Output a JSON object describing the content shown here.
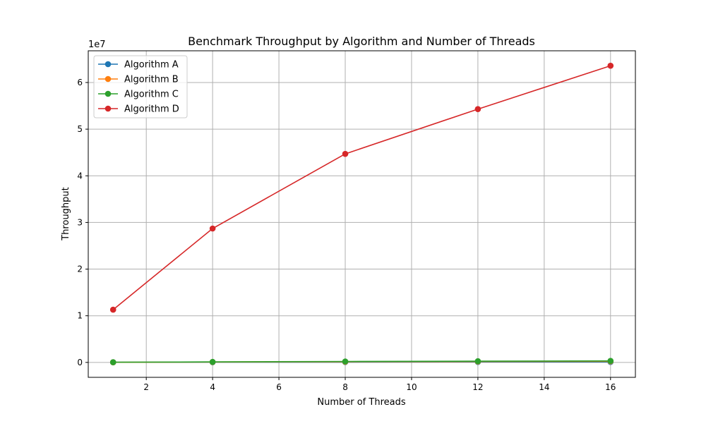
{
  "chart_data": {
    "type": "line",
    "title": "Benchmark Throughput by Algorithm and Number of Threads",
    "xlabel": "Number of Threads",
    "ylabel": "Throughput",
    "y_offset_label": "1e7",
    "xlim": [
      0.25,
      16.75
    ],
    "ylim": [
      -3200000,
      66800000
    ],
    "x_ticks": [
      2,
      4,
      6,
      8,
      10,
      12,
      14,
      16
    ],
    "y_ticks": [
      0,
      10000000,
      20000000,
      30000000,
      40000000,
      50000000,
      60000000
    ],
    "y_tick_labels": [
      "0",
      "1",
      "2",
      "3",
      "4",
      "5",
      "6"
    ],
    "grid": true,
    "legend_position": "top-left",
    "x": [
      1,
      4,
      8,
      12,
      16
    ],
    "series": [
      {
        "name": "Algorithm A",
        "color": "#1f77b4",
        "values": [
          15000,
          45000,
          70000,
          90000,
          100000
        ]
      },
      {
        "name": "Algorithm B",
        "color": "#ff7f0e",
        "values": [
          25000,
          80000,
          140000,
          190000,
          230000
        ]
      },
      {
        "name": "Algorithm C",
        "color": "#2ca02c",
        "values": [
          40000,
          110000,
          200000,
          260000,
          320000
        ]
      },
      {
        "name": "Algorithm D",
        "color": "#d62728",
        "values": [
          11300000,
          28700000,
          44700000,
          54300000,
          63600000
        ]
      }
    ]
  }
}
